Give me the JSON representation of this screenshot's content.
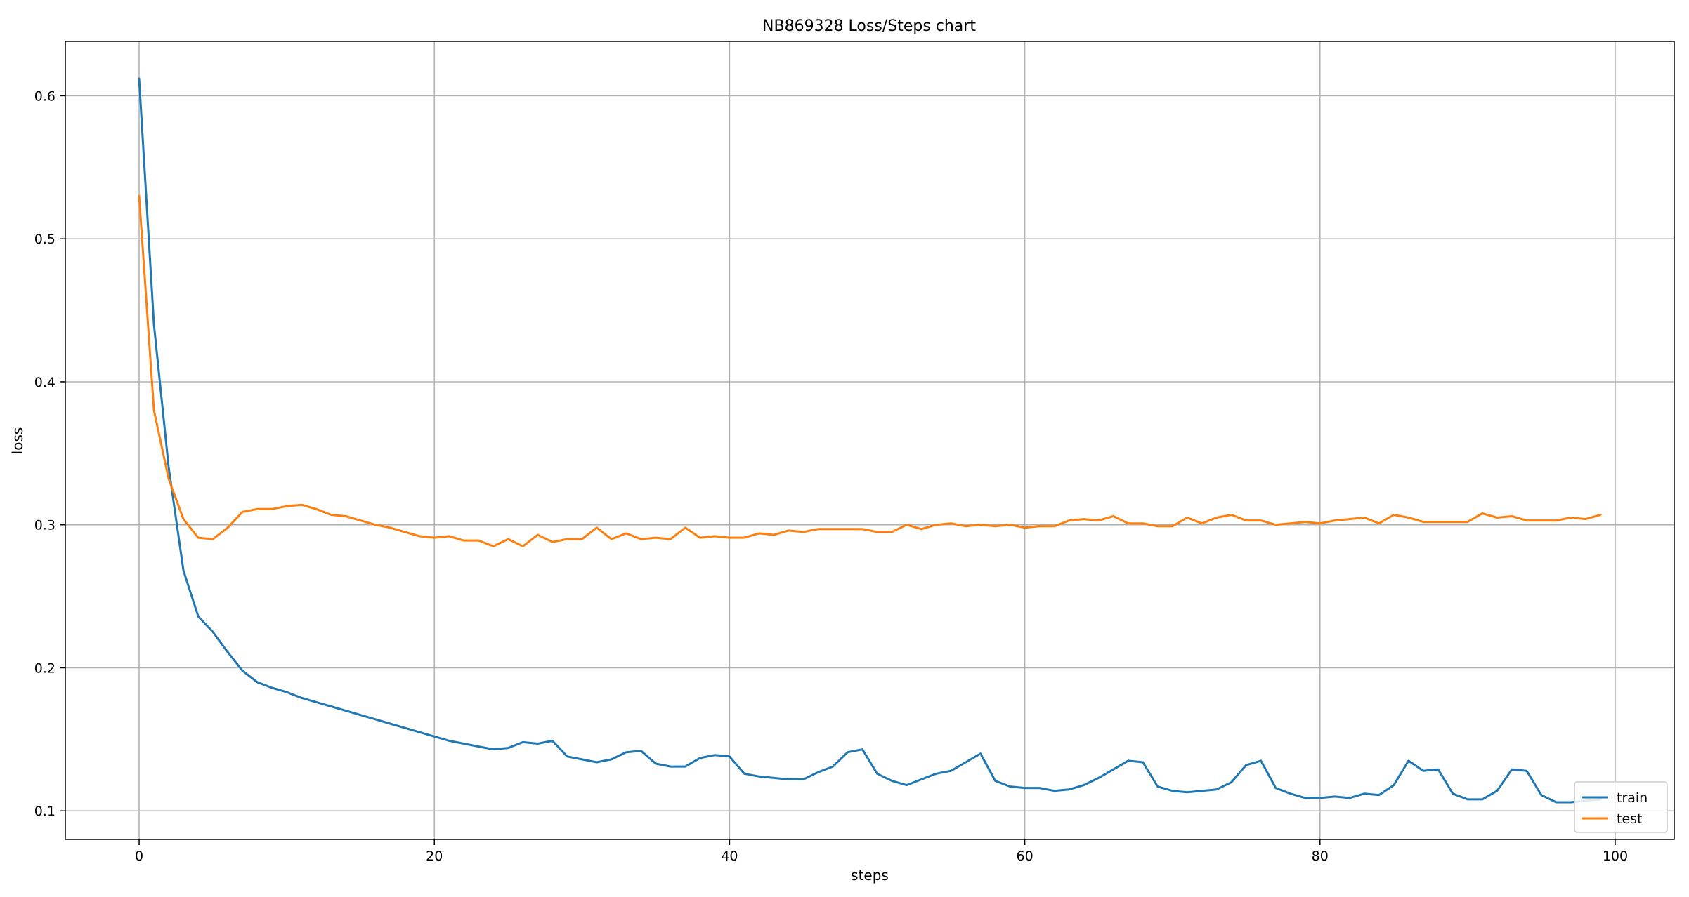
{
  "chart_data": {
    "type": "line",
    "title": "NB869328 Loss/Steps chart",
    "xlabel": "steps",
    "ylabel": "loss",
    "xlim": [
      -5,
      104
    ],
    "ylim": [
      0.08,
      0.638
    ],
    "xticks": [
      0,
      20,
      40,
      60,
      80,
      100
    ],
    "yticks": [
      0.1,
      0.2,
      0.3,
      0.4,
      0.5,
      0.6
    ],
    "grid": true,
    "legend_position": "bottom-right",
    "series": [
      {
        "name": "train",
        "color": "#1f77b4",
        "x": [
          0,
          1,
          2,
          3,
          4,
          5,
          6,
          7,
          8,
          9,
          10,
          11,
          12,
          13,
          14,
          15,
          16,
          17,
          18,
          19,
          20,
          21,
          22,
          23,
          24,
          25,
          26,
          27,
          28,
          29,
          30,
          31,
          32,
          33,
          34,
          35,
          36,
          37,
          38,
          39,
          40,
          41,
          42,
          43,
          44,
          45,
          46,
          47,
          48,
          49,
          50,
          51,
          52,
          53,
          54,
          55,
          56,
          57,
          58,
          59,
          60,
          61,
          62,
          63,
          64,
          65,
          66,
          67,
          68,
          69,
          70,
          71,
          72,
          73,
          74,
          75,
          76,
          77,
          78,
          79,
          80,
          81,
          82,
          83,
          84,
          85,
          86,
          87,
          88,
          89,
          90,
          91,
          92,
          93,
          94,
          95,
          96,
          97,
          98,
          99
        ],
        "y": [
          0.612,
          0.44,
          0.34,
          0.268,
          0.236,
          0.225,
          0.211,
          0.198,
          0.19,
          0.186,
          0.183,
          0.179,
          0.176,
          0.173,
          0.17,
          0.167,
          0.164,
          0.161,
          0.158,
          0.155,
          0.152,
          0.149,
          0.147,
          0.145,
          0.143,
          0.144,
          0.148,
          0.147,
          0.149,
          0.138,
          0.136,
          0.134,
          0.136,
          0.141,
          0.142,
          0.133,
          0.131,
          0.131,
          0.137,
          0.139,
          0.138,
          0.126,
          0.124,
          0.123,
          0.122,
          0.122,
          0.127,
          0.131,
          0.141,
          0.143,
          0.126,
          0.121,
          0.118,
          0.122,
          0.126,
          0.128,
          0.134,
          0.14,
          0.121,
          0.117,
          0.116,
          0.116,
          0.114,
          0.115,
          0.118,
          0.123,
          0.129,
          0.135,
          0.134,
          0.117,
          0.114,
          0.113,
          0.114,
          0.115,
          0.12,
          0.132,
          0.135,
          0.116,
          0.112,
          0.109,
          0.109,
          0.11,
          0.109,
          0.112,
          0.111,
          0.118,
          0.135,
          0.128,
          0.129,
          0.112,
          0.108,
          0.108,
          0.114,
          0.129,
          0.128,
          0.111,
          0.106,
          0.106,
          0.107,
          0.108
        ]
      },
      {
        "name": "test",
        "color": "#ff7f0e",
        "x": [
          0,
          1,
          2,
          3,
          4,
          5,
          6,
          7,
          8,
          9,
          10,
          11,
          12,
          13,
          14,
          15,
          16,
          17,
          18,
          19,
          20,
          21,
          22,
          23,
          24,
          25,
          26,
          27,
          28,
          29,
          30,
          31,
          32,
          33,
          34,
          35,
          36,
          37,
          38,
          39,
          40,
          41,
          42,
          43,
          44,
          45,
          46,
          47,
          48,
          49,
          50,
          51,
          52,
          53,
          54,
          55,
          56,
          57,
          58,
          59,
          60,
          61,
          62,
          63,
          64,
          65,
          66,
          67,
          68,
          69,
          70,
          71,
          72,
          73,
          74,
          75,
          76,
          77,
          78,
          79,
          80,
          81,
          82,
          83,
          84,
          85,
          86,
          87,
          88,
          89,
          90,
          91,
          92,
          93,
          94,
          95,
          96,
          97,
          98,
          99
        ],
        "y": [
          0.53,
          0.38,
          0.332,
          0.304,
          0.291,
          0.29,
          0.298,
          0.309,
          0.311,
          0.311,
          0.313,
          0.314,
          0.311,
          0.307,
          0.306,
          0.303,
          0.3,
          0.298,
          0.295,
          0.292,
          0.291,
          0.292,
          0.289,
          0.289,
          0.285,
          0.29,
          0.285,
          0.293,
          0.288,
          0.29,
          0.29,
          0.298,
          0.29,
          0.294,
          0.29,
          0.291,
          0.29,
          0.298,
          0.291,
          0.292,
          0.291,
          0.291,
          0.294,
          0.293,
          0.296,
          0.295,
          0.297,
          0.297,
          0.297,
          0.297,
          0.295,
          0.295,
          0.3,
          0.297,
          0.3,
          0.301,
          0.299,
          0.3,
          0.299,
          0.3,
          0.298,
          0.299,
          0.299,
          0.303,
          0.304,
          0.303,
          0.306,
          0.301,
          0.301,
          0.299,
          0.299,
          0.305,
          0.301,
          0.305,
          0.307,
          0.303,
          0.303,
          0.3,
          0.301,
          0.302,
          0.301,
          0.303,
          0.304,
          0.305,
          0.301,
          0.307,
          0.305,
          0.302,
          0.302,
          0.302,
          0.302,
          0.308,
          0.305,
          0.306,
          0.303,
          0.303,
          0.303,
          0.305,
          0.304,
          0.307
        ]
      }
    ]
  }
}
